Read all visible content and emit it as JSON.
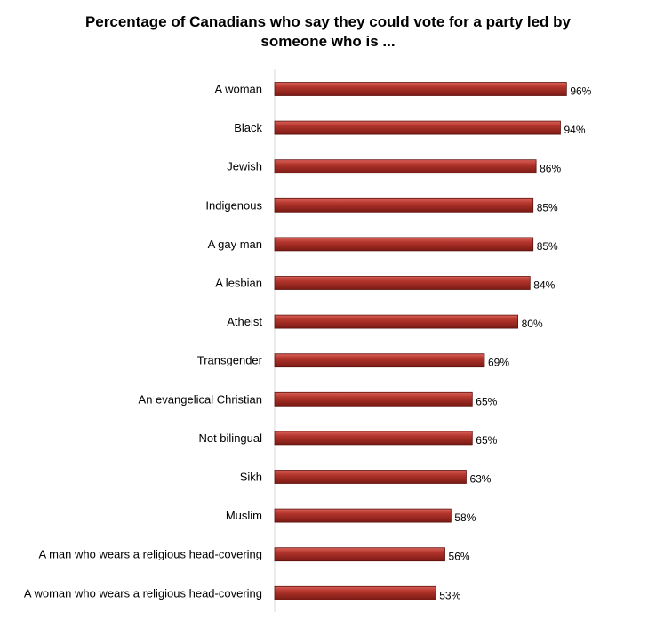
{
  "chart_data": {
    "type": "bar",
    "orientation": "horizontal",
    "title_lines": [
      "Percentage of Canadians who say they could vote for a party led by",
      "someone who is ..."
    ],
    "categories": [
      "A woman",
      "Black",
      "Jewish",
      "Indigenous",
      "A gay man",
      "A lesbian",
      "Atheist",
      "Transgender",
      "An evangelical Christian",
      "Not bilingual",
      "Sikh",
      "Muslim",
      "A man who wears a religious head-covering",
      "A woman who wears a religious head-covering"
    ],
    "values": [
      96,
      94,
      86,
      85,
      85,
      84,
      80,
      69,
      65,
      65,
      63,
      58,
      56,
      53
    ],
    "value_labels": [
      "96%",
      "94%",
      "86%",
      "85%",
      "85%",
      "84%",
      "80%",
      "69%",
      "65%",
      "65%",
      "63%",
      "58%",
      "56%",
      "53%"
    ],
    "xlim": [
      0,
      100
    ],
    "grid": false,
    "legend": "none",
    "bar_color": "#a52a22"
  }
}
